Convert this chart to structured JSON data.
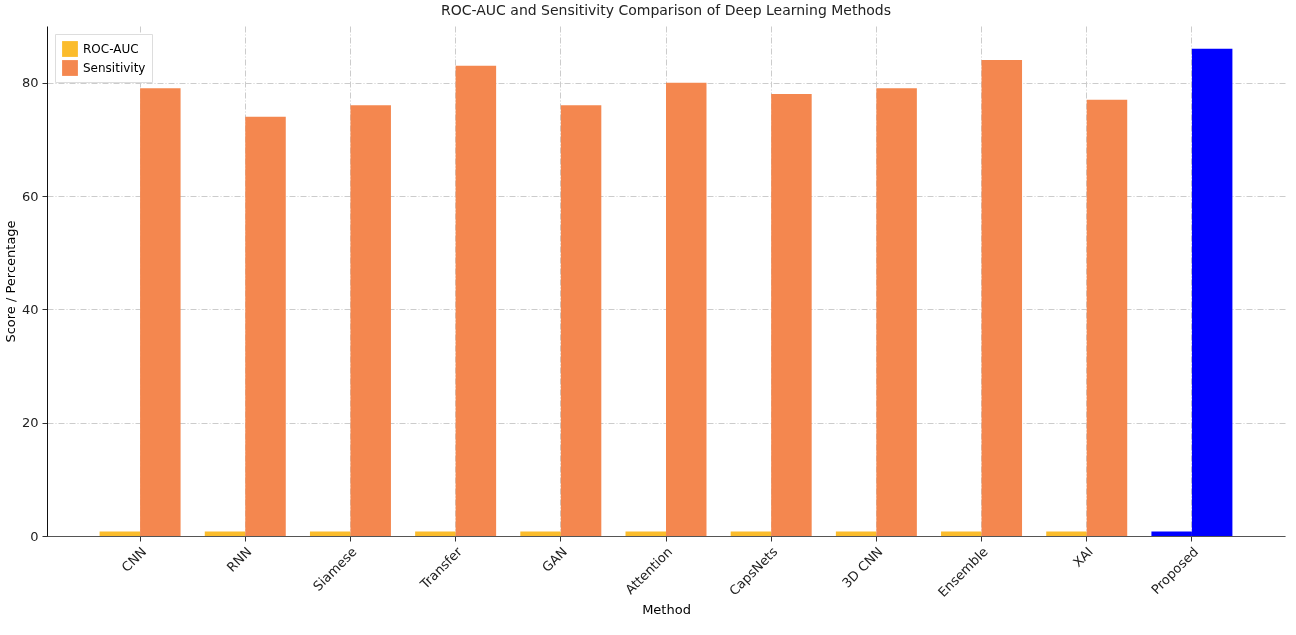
{
  "chart_data": {
    "type": "bar",
    "title": "ROC-AUC and Sensitivity Comparison of Deep Learning Methods",
    "xlabel": "Method",
    "ylabel": "Score / Percentage",
    "categories": [
      "CNN",
      "RNN",
      "Siamese",
      "Transfer",
      "GAN",
      "Attention",
      "CapsNets",
      "3D CNN",
      "Ensemble",
      "XAI",
      "Proposed"
    ],
    "series": [
      {
        "name": "ROC-AUC",
        "color": "#fbbc2c",
        "colors": [
          "#fbbc2c",
          "#fbbc2c",
          "#fbbc2c",
          "#fbbc2c",
          "#fbbc2c",
          "#fbbc2c",
          "#fbbc2c",
          "#fbbc2c",
          "#fbbc2c",
          "#fbbc2c",
          "#0000ff"
        ],
        "values": [
          0.8,
          0.8,
          0.8,
          0.8,
          0.8,
          0.8,
          0.8,
          0.8,
          0.8,
          0.8,
          0.8
        ]
      },
      {
        "name": "Sensitivity",
        "color": "#f4874f",
        "colors": [
          "#f4874f",
          "#f4874f",
          "#f4874f",
          "#f4874f",
          "#f4874f",
          "#f4874f",
          "#f4874f",
          "#f4874f",
          "#f4874f",
          "#f4874f",
          "#0000ff"
        ],
        "values": [
          79,
          74,
          76,
          83,
          76,
          80,
          78,
          79,
          84,
          77,
          86
        ]
      }
    ],
    "ylim": [
      0,
      90
    ],
    "yticks": [
      0,
      20,
      40,
      60,
      80
    ],
    "grid": true,
    "legend": "top left"
  }
}
